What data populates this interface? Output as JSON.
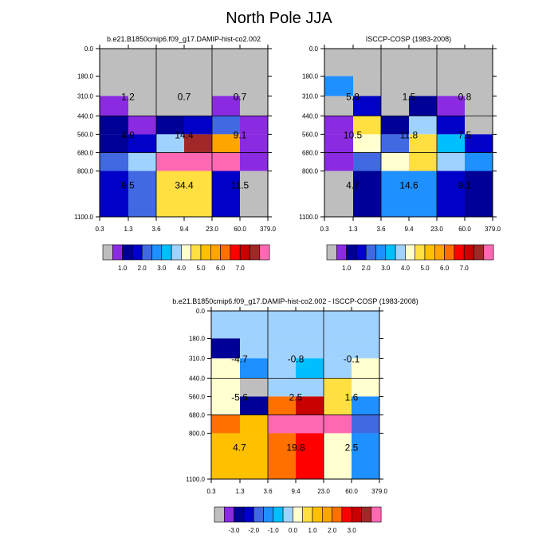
{
  "title": "North Pole JJA",
  "colors": {
    "palette": [
      "#bebebe",
      "#8a2be2",
      "#000096",
      "#0000c8",
      "#4169e1",
      "#1e90ff",
      "#00bfff",
      "#a0d2ff",
      "#ffffd0",
      "#ffe040",
      "#ffc000",
      "#ffa500",
      "#ff7000",
      "#ff0000",
      "#c80000",
      "#a02828",
      "#ff69b4"
    ],
    "frame": "#000000"
  },
  "chart_data": [
    {
      "type": "heatmap",
      "title": "b.e21.B1850cmip6.f09_g17.DAMIP-hist-co2.002",
      "x_tick_labels": [
        "0.3",
        "1.3",
        "3.6",
        "9.4",
        "23.0",
        "60.0",
        "379.0"
      ],
      "y_tick_labels": [
        "0.0",
        "180.0",
        "310.0",
        "440.0",
        "560.0",
        "680.0",
        "800.0",
        "1100.0"
      ],
      "cell_color_index": [
        [
          0,
          0,
          0,
          0,
          0,
          0
        ],
        [
          0,
          0,
          0,
          0,
          0,
          0
        ],
        [
          1,
          0,
          0,
          0,
          1,
          0
        ],
        [
          2,
          1,
          2,
          3,
          4,
          1
        ],
        [
          2,
          3,
          7,
          15,
          11,
          1
        ],
        [
          4,
          7,
          16,
          16,
          16,
          1
        ],
        [
          3,
          4,
          9,
          9,
          3,
          0
        ]
      ],
      "annotations": [
        {
          "text": "1.2",
          "col": 0,
          "row": 0
        },
        {
          "text": "0.7",
          "col": 1,
          "row": 0
        },
        {
          "text": "0.7",
          "col": 2,
          "row": 0
        },
        {
          "text": "4.9",
          "col": 0,
          "row": 1
        },
        {
          "text": "14.4",
          "col": 1,
          "row": 1
        },
        {
          "text": "9.1",
          "col": 2,
          "row": 1
        },
        {
          "text": "9.5",
          "col": 0,
          "row": 2
        },
        {
          "text": "34.4",
          "col": 1,
          "row": 2
        },
        {
          "text": "11.5",
          "col": 2,
          "row": 2
        }
      ],
      "colorbar_labels": [
        "1.0",
        "2.0",
        "3.0",
        "4.0",
        "5.0",
        "6.0",
        "7.0"
      ]
    },
    {
      "type": "heatmap",
      "title": "ISCCP-COSP (1983-2008)",
      "x_tick_labels": [
        "0.3",
        "1.3",
        "3.6",
        "9.4",
        "23.0",
        "60.0",
        "379.0"
      ],
      "y_tick_labels": [
        "0.0",
        "180.0",
        "310.0",
        "440.0",
        "560.0",
        "680.0",
        "800.0",
        "1100.0"
      ],
      "cell_color_index": [
        [
          0,
          0,
          0,
          0,
          0,
          0
        ],
        [
          5,
          0,
          0,
          0,
          0,
          0
        ],
        [
          0,
          3,
          0,
          2,
          1,
          0
        ],
        [
          1,
          9,
          2,
          7,
          3,
          0
        ],
        [
          1,
          8,
          4,
          9,
          6,
          3
        ],
        [
          1,
          4,
          8,
          9,
          7,
          5
        ],
        [
          0,
          2,
          5,
          5,
          3,
          2
        ]
      ],
      "annotations": [
        {
          "text": "5.8",
          "col": 0,
          "row": 0
        },
        {
          "text": "1.5",
          "col": 1,
          "row": 0
        },
        {
          "text": "0.8",
          "col": 2,
          "row": 0
        },
        {
          "text": "10.5",
          "col": 0,
          "row": 1
        },
        {
          "text": "11.8",
          "col": 1,
          "row": 1
        },
        {
          "text": "7.5",
          "col": 2,
          "row": 1
        },
        {
          "text": "4.7",
          "col": 0,
          "row": 2
        },
        {
          "text": "14.6",
          "col": 1,
          "row": 2
        },
        {
          "text": "9.1",
          "col": 2,
          "row": 2
        }
      ],
      "colorbar_labels": [
        "1.0",
        "2.0",
        "3.0",
        "4.0",
        "5.0",
        "6.0",
        "7.0"
      ]
    },
    {
      "type": "heatmap",
      "title": "b.e21.B1850cmip6.f09_g17.DAMIP-hist-co2.002 - ISCCP-COSP (1983-2008)",
      "x_tick_labels": [
        "0.3",
        "1.3",
        "3.6",
        "9.4",
        "23.0",
        "60.0",
        "379.0"
      ],
      "y_tick_labels": [
        "0.0",
        "180.0",
        "310.0",
        "440.0",
        "560.0",
        "680.0",
        "800.0",
        "1100.0"
      ],
      "cell_color_index": [
        [
          7,
          7,
          7,
          7,
          7,
          7
        ],
        [
          2,
          7,
          7,
          7,
          7,
          7
        ],
        [
          8,
          5,
          7,
          6,
          7,
          8
        ],
        [
          8,
          0,
          7,
          7,
          9,
          8
        ],
        [
          8,
          2,
          12,
          14,
          9,
          5
        ],
        [
          12,
          10,
          16,
          16,
          16,
          4
        ],
        [
          10,
          10,
          12,
          13,
          8,
          5
        ]
      ],
      "annotations": [
        {
          "text": "-4.7",
          "col": 0,
          "row": 0
        },
        {
          "text": "-0.8",
          "col": 1,
          "row": 0
        },
        {
          "text": "-0.1",
          "col": 2,
          "row": 0
        },
        {
          "text": "-5.6",
          "col": 0,
          "row": 1
        },
        {
          "text": "2.5",
          "col": 1,
          "row": 1
        },
        {
          "text": "1.6",
          "col": 2,
          "row": 1
        },
        {
          "text": "4.7",
          "col": 0,
          "row": 2
        },
        {
          "text": "19.8",
          "col": 1,
          "row": 2
        },
        {
          "text": "2.5",
          "col": 2,
          "row": 2
        }
      ],
      "colorbar_labels": [
        "-3.0",
        "-2.0",
        "-1.0",
        "0.0",
        "1.0",
        "2.0",
        "3.0"
      ]
    }
  ]
}
